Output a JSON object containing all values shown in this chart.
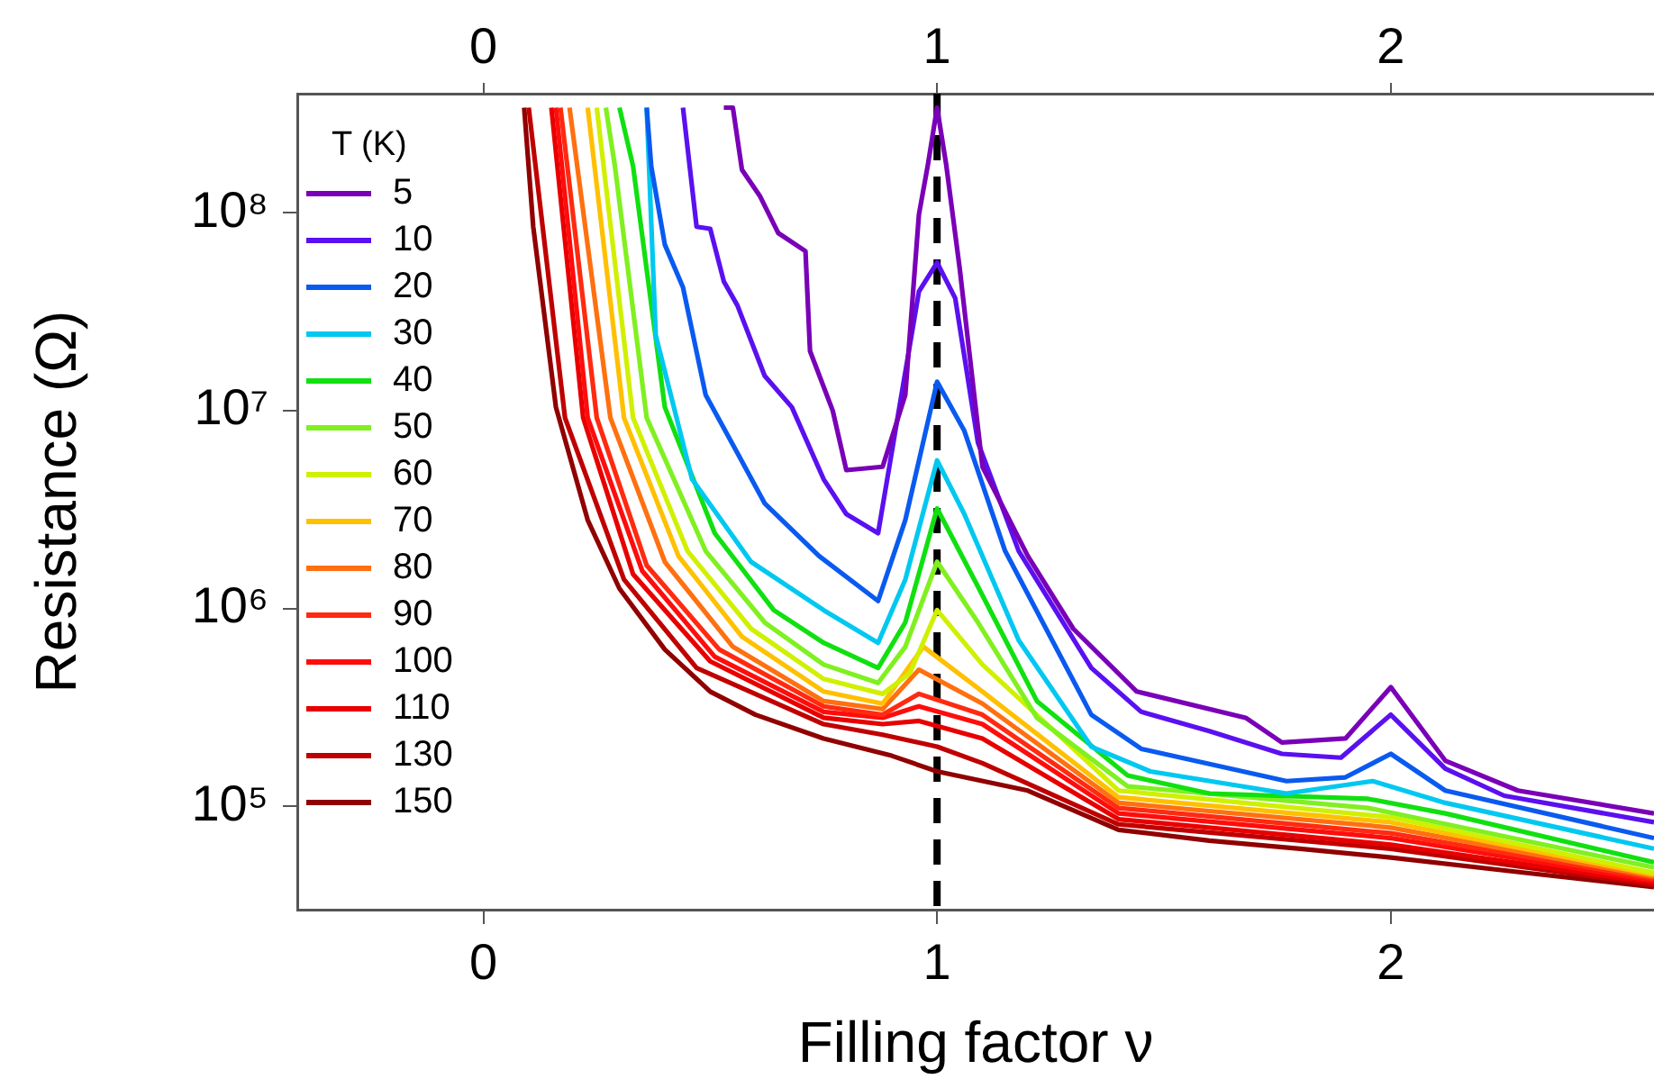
{
  "chart_data": {
    "type": "line",
    "xlabel": "Filling factor ν",
    "ylabel": "Resistance (Ω)",
    "legend_title": "T (K)",
    "legend": "top left",
    "log": "y",
    "grid": false,
    "xlim": [
      -0.41,
      2.58
    ],
    "xticks": [
      0,
      1,
      2
    ],
    "x2lim": [
      -0.41,
      2.58
    ],
    "x2ticks": [
      0,
      1,
      2
    ],
    "ylim": [
      30000,
      400000000
    ],
    "yticks": [
      {
        "value": 100000,
        "label": "10⁵"
      },
      {
        "value": 1000000,
        "label": "10⁶"
      },
      {
        "value": 10000000,
        "label": "10⁷"
      },
      {
        "value": 100000000,
        "label": "10⁸"
      }
    ],
    "ref_lines": [
      {
        "axis": "x",
        "value": 1,
        "color": "#000000",
        "line_style": "dashed"
      }
    ],
    "series": [
      {
        "name": "5",
        "color": "#7a00b8",
        "x": [
          0.53,
          0.55,
          0.57,
          0.61,
          0.65,
          0.71,
          0.72,
          0.77,
          0.8,
          0.88,
          0.93,
          0.96,
          0.98,
          1.0,
          1.02,
          1.05,
          1.1,
          1.2,
          1.3,
          1.44,
          1.68,
          1.76,
          1.9,
          2.0,
          2.12,
          2.28,
          2.58
        ],
        "values": [
          340000000,
          340000000,
          165000000,
          121000000,
          79000000,
          64000000,
          20000000,
          10000000,
          5000000,
          5200000,
          12000000,
          98000000,
          176000000,
          340000000,
          176000000,
          52000000,
          5200000,
          1840000,
          790000,
          380000,
          280000,
          210000,
          220000,
          400000,
          170000,
          120000,
          92000
        ]
      },
      {
        "name": "10",
        "color": "#5a10f0",
        "x": [
          0.44,
          0.47,
          0.5,
          0.53,
          0.56,
          0.62,
          0.68,
          0.75,
          0.8,
          0.87,
          0.96,
          1.0,
          1.04,
          1.09,
          1.18,
          1.34,
          1.45,
          1.6,
          1.76,
          1.89,
          2.0,
          2.12,
          2.25,
          2.58
        ],
        "values": [
          340000000,
          85000000,
          83000000,
          45000000,
          34000000,
          15000000,
          10400000,
          4500000,
          3000000,
          2400000,
          40000000,
          56000000,
          37000000,
          6900000,
          1950000,
          500000,
          300000,
          240000,
          184000,
          176000,
          290000,
          155000,
          113000,
          83000
        ]
      },
      {
        "name": "20",
        "color": "#0a5af0",
        "x": [
          0.36,
          0.37,
          0.4,
          0.44,
          0.49,
          0.56,
          0.62,
          0.74,
          0.87,
          0.93,
          1.0,
          1.06,
          1.15,
          1.34,
          1.45,
          1.77,
          1.9,
          2.0,
          2.12,
          2.58
        ],
        "values": [
          340000000,
          172000000,
          69000000,
          42000000,
          12000000,
          6100000,
          3400000,
          1840000,
          1090000,
          2800000,
          14000000,
          7900000,
          1950000,
          290000,
          195000,
          134000,
          140000,
          184000,
          120000,
          69000
        ]
      },
      {
        "name": "30",
        "color": "#00c8f0",
        "x": [
          0.36,
          0.38,
          0.46,
          0.59,
          0.75,
          0.87,
          0.93,
          1.0,
          1.06,
          1.18,
          1.34,
          1.47,
          1.77,
          1.96,
          2.12,
          2.58
        ],
        "values": [
          340000000,
          24000000,
          4500000,
          1720000,
          980000,
          670000,
          1400000,
          5600000,
          3000000,
          690000,
          200000,
          150000,
          116000,
          134000,
          104000,
          61000
        ]
      },
      {
        "name": "40",
        "color": "#10e010",
        "x": [
          0.3,
          0.33,
          0.4,
          0.51,
          0.64,
          0.75,
          0.87,
          0.93,
          1.0,
          1.09,
          1.22,
          1.42,
          1.6,
          1.95,
          2.12,
          2.58
        ],
        "values": [
          340000000,
          172000000,
          10400000,
          2400000,
          980000,
          670000,
          500000,
          850000,
          3200000,
          1290000,
          340000,
          143000,
          116000,
          109000,
          92000,
          52000
        ]
      },
      {
        "name": "50",
        "color": "#80f020",
        "x": [
          0.27,
          0.29,
          0.36,
          0.49,
          0.62,
          0.75,
          0.87,
          0.93,
          1.0,
          1.09,
          1.22,
          1.42,
          1.95,
          2.58
        ],
        "values": [
          340000000,
          172000000,
          9200000,
          1950000,
          850000,
          520000,
          420000,
          640000,
          1720000,
          850000,
          280000,
          126000,
          98000,
          49000
        ]
      },
      {
        "name": "60",
        "color": "#d0f000",
        "x": [
          0.25,
          0.33,
          0.45,
          0.59,
          0.75,
          0.88,
          0.94,
          1.0,
          1.1,
          1.4,
          2.0,
          2.58
        ],
        "values": [
          340000000,
          9200000,
          1950000,
          790000,
          440000,
          370000,
          470000,
          980000,
          520000,
          120000,
          88000,
          46000
        ]
      },
      {
        "name": "70",
        "color": "#ffc000",
        "x": [
          0.23,
          0.31,
          0.43,
          0.57,
          0.75,
          0.88,
          0.97,
          1.1,
          1.4,
          2.0,
          2.58
        ],
        "values": [
          340000000,
          9200000,
          1840000,
          720000,
          380000,
          330000,
          640000,
          380000,
          111000,
          83000,
          45000
        ]
      },
      {
        "name": "80",
        "color": "#ff7010",
        "x": [
          0.19,
          0.28,
          0.4,
          0.55,
          0.75,
          0.88,
          0.96,
          1.1,
          1.4,
          2.0,
          2.58
        ],
        "values": [
          340000000,
          9200000,
          1720000,
          640000,
          340000,
          310000,
          490000,
          330000,
          104000,
          78000,
          44000
        ]
      },
      {
        "name": "90",
        "color": "#ff2a10",
        "x": [
          0.17,
          0.25,
          0.36,
          0.52,
          0.75,
          0.88,
          0.96,
          1.1,
          1.4,
          2.0,
          2.58
        ],
        "values": [
          340000000,
          9200000,
          1650000,
          620000,
          320000,
          290000,
          370000,
          290000,
          98000,
          73000,
          43000
        ]
      },
      {
        "name": "100",
        "color": "#ff0c0c",
        "x": [
          0.16,
          0.23,
          0.35,
          0.51,
          0.75,
          0.88,
          0.96,
          1.1,
          1.4,
          2.0,
          2.58
        ],
        "values": [
          340000000,
          9200000,
          1550000,
          570000,
          300000,
          280000,
          320000,
          260000,
          92000,
          69000,
          42000
        ]
      },
      {
        "name": "110",
        "color": "#e80000",
        "x": [
          0.15,
          0.22,
          0.33,
          0.5,
          0.75,
          0.88,
          0.96,
          1.1,
          1.4,
          2.0,
          2.58
        ],
        "values": [
          340000000,
          9200000,
          1490000,
          540000,
          280000,
          260000,
          270000,
          220000,
          86000,
          64000,
          41000
        ]
      },
      {
        "name": "130",
        "color": "#c00000",
        "x": [
          0.1,
          0.18,
          0.31,
          0.47,
          0.75,
          0.88,
          1.0,
          1.1,
          1.4,
          2.0,
          2.58
        ],
        "values": [
          340000000,
          9200000,
          1400000,
          500000,
          260000,
          230000,
          200000,
          165000,
          81000,
          61000,
          40000
        ]
      },
      {
        "name": "150",
        "color": "#900000",
        "x": [
          0.09,
          0.11,
          0.16,
          0.23,
          0.3,
          0.4,
          0.5,
          0.6,
          0.75,
          0.9,
          1.0,
          1.2,
          1.4,
          1.6,
          1.8,
          2.0,
          2.3,
          2.58
        ],
        "values": [
          340000000,
          85000000,
          10400000,
          2800000,
          1260000,
          620000,
          380000,
          290000,
          220000,
          180000,
          150000,
          120000,
          76000,
          67000,
          61000,
          55000,
          46000,
          39000
        ]
      }
    ]
  }
}
